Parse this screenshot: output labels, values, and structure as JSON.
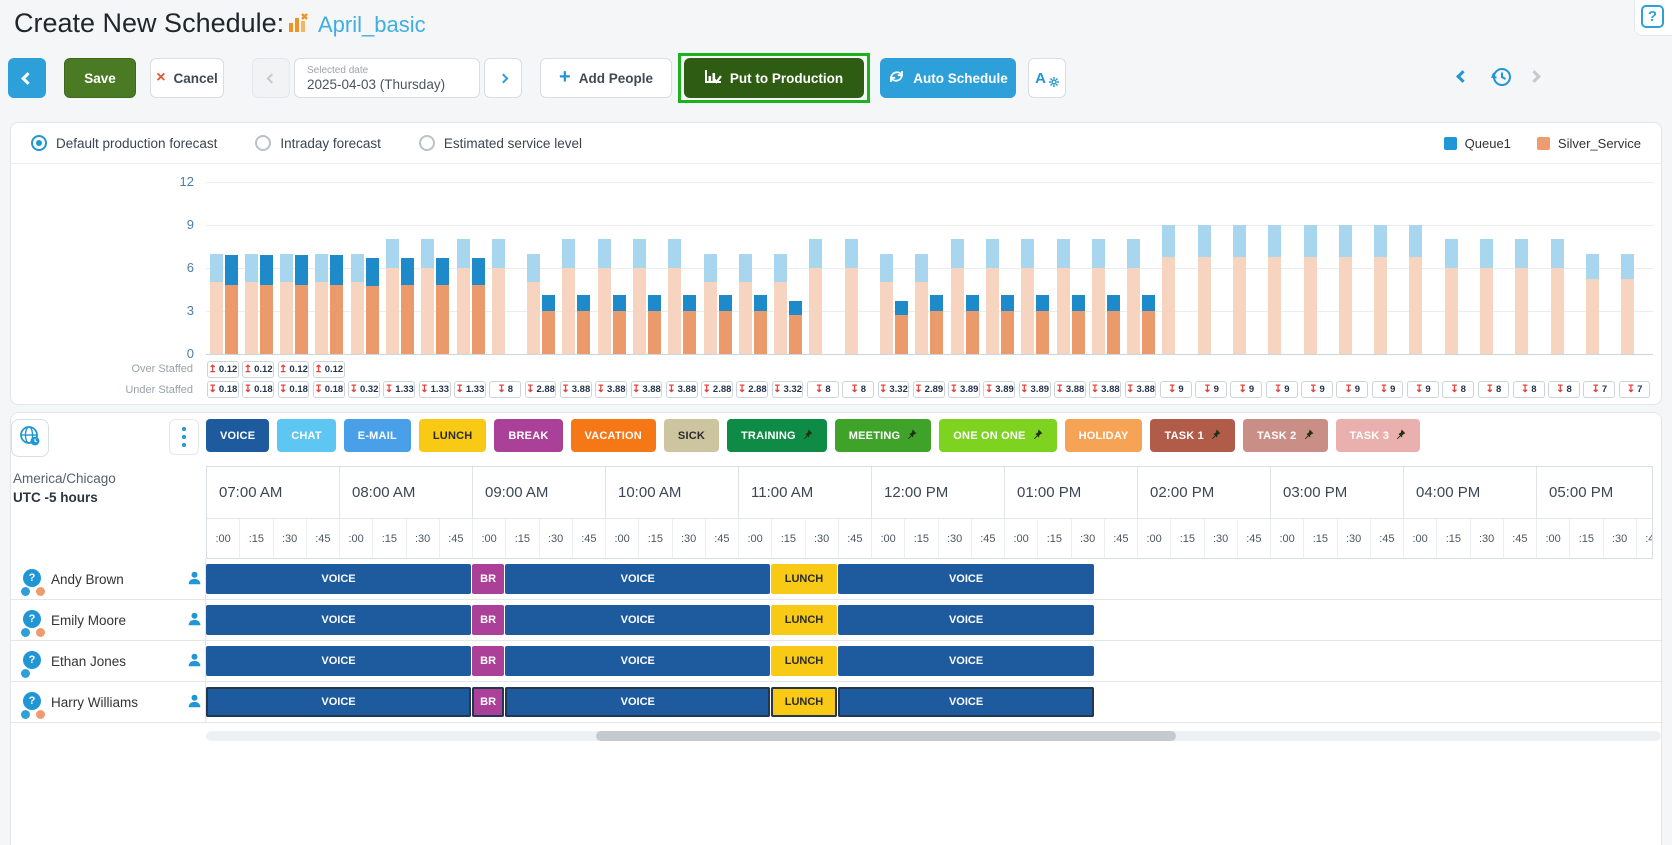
{
  "header": {
    "title": "Create New Schedule:",
    "schedule_name": "April_basic"
  },
  "icons": {
    "help": "?",
    "cancel_x": "×",
    "plus": "+",
    "question": "?",
    "auto_settings_letter": "A"
  },
  "toolbar": {
    "save": "Save",
    "cancel": "Cancel",
    "date_label": "Selected date",
    "date_value": "2025-04-03 (Thursday)",
    "add_people": "Add People",
    "put_to_production": "Put to Production",
    "auto_schedule": "Auto Schedule"
  },
  "chart": {
    "radios": [
      {
        "label": "Default production forecast",
        "selected": true
      },
      {
        "label": "Intraday forecast",
        "selected": false
      },
      {
        "label": "Estimated service level",
        "selected": false
      }
    ],
    "legend": [
      {
        "label": "Queue1",
        "color": "#2196d4"
      },
      {
        "label": "Silver_Service",
        "color": "#ef9b70"
      }
    ],
    "over_label": "Over Staffed",
    "under_label": "Under Staffed",
    "over_arrow": "↥",
    "under_arrow": "↧"
  },
  "chart_data": {
    "type": "bar",
    "stacked": true,
    "grid": true,
    "ylim": [
      0,
      12
    ],
    "yticks": [
      12,
      9,
      6,
      3,
      0
    ],
    "legend_position": "top-right",
    "series": [
      {
        "name": "Silver_Service forecast",
        "color": "#f7d4c0"
      },
      {
        "name": "Queue1 forecast",
        "color": "#a9d6ef"
      },
      {
        "name": "Silver_Service scheduled",
        "color": "#eb9a6c"
      },
      {
        "name": "Queue1 scheduled",
        "color": "#1f8ac9"
      }
    ],
    "intervals": [
      {
        "t": "07:00",
        "f": [
          5,
          2
        ],
        "s": [
          4.82,
          2.12
        ],
        "over": "0.12",
        "under": "0.18"
      },
      {
        "t": "07:15",
        "f": [
          5,
          2
        ],
        "s": [
          4.82,
          2.12
        ],
        "over": "0.12",
        "under": "0.18"
      },
      {
        "t": "07:30",
        "f": [
          5,
          2
        ],
        "s": [
          4.82,
          2.12
        ],
        "over": "0.12",
        "under": "0.18"
      },
      {
        "t": "07:45",
        "f": [
          5,
          2
        ],
        "s": [
          4.82,
          2.12
        ],
        "over": "0.12",
        "under": "0.18"
      },
      {
        "t": "08:00",
        "f": [
          5,
          2
        ],
        "s": [
          4.78,
          1.9
        ],
        "over": null,
        "under": "0.32"
      },
      {
        "t": "08:15",
        "f": [
          6,
          2
        ],
        "s": [
          4.8,
          1.87
        ],
        "over": null,
        "under": "1.33"
      },
      {
        "t": "08:30",
        "f": [
          6,
          2
        ],
        "s": [
          4.8,
          1.87
        ],
        "over": null,
        "under": "1.33"
      },
      {
        "t": "08:45",
        "f": [
          6,
          2
        ],
        "s": [
          4.8,
          1.87
        ],
        "over": null,
        "under": "1.33"
      },
      {
        "t": "09:00",
        "f": [
          6,
          2
        ],
        "s": [
          0,
          0
        ],
        "over": null,
        "under": "8"
      },
      {
        "t": "09:15",
        "f": [
          5,
          2
        ],
        "s": [
          3,
          1.12
        ],
        "over": null,
        "under": "2.88"
      },
      {
        "t": "09:30",
        "f": [
          6,
          2
        ],
        "s": [
          3,
          1.12
        ],
        "over": null,
        "under": "3.88"
      },
      {
        "t": "09:45",
        "f": [
          6,
          2
        ],
        "s": [
          3,
          1.12
        ],
        "over": null,
        "under": "3.88"
      },
      {
        "t": "10:00",
        "f": [
          6,
          2
        ],
        "s": [
          3,
          1.12
        ],
        "over": null,
        "under": "3.88"
      },
      {
        "t": "10:15",
        "f": [
          6,
          2
        ],
        "s": [
          3,
          1.12
        ],
        "over": null,
        "under": "3.88"
      },
      {
        "t": "10:30",
        "f": [
          5,
          2
        ],
        "s": [
          3,
          1.12
        ],
        "over": null,
        "under": "2.88"
      },
      {
        "t": "10:45",
        "f": [
          5,
          2
        ],
        "s": [
          3,
          1.12
        ],
        "over": null,
        "under": "2.88"
      },
      {
        "t": "11:00",
        "f": [
          5,
          2
        ],
        "s": [
          2.7,
          0.98
        ],
        "over": null,
        "under": "3.32"
      },
      {
        "t": "11:15",
        "f": [
          6,
          2
        ],
        "s": [
          0,
          0
        ],
        "over": null,
        "under": "8"
      },
      {
        "t": "11:30",
        "f": [
          6,
          2
        ],
        "s": [
          0,
          0
        ],
        "over": null,
        "under": "8"
      },
      {
        "t": "11:45",
        "f": [
          5,
          2
        ],
        "s": [
          2.7,
          0.98
        ],
        "over": null,
        "under": "3.32"
      },
      {
        "t": "12:00",
        "f": [
          5,
          2
        ],
        "s": [
          3,
          1.11
        ],
        "over": null,
        "under": "2.89"
      },
      {
        "t": "12:15",
        "f": [
          6,
          2
        ],
        "s": [
          3,
          1.11
        ],
        "over": null,
        "under": "3.89"
      },
      {
        "t": "12:30",
        "f": [
          6,
          2
        ],
        "s": [
          3,
          1.11
        ],
        "over": null,
        "under": "3.89"
      },
      {
        "t": "12:45",
        "f": [
          6,
          2
        ],
        "s": [
          3,
          1.11
        ],
        "over": null,
        "under": "3.89"
      },
      {
        "t": "13:00",
        "f": [
          6,
          2
        ],
        "s": [
          3,
          1.12
        ],
        "over": null,
        "under": "3.88"
      },
      {
        "t": "13:15",
        "f": [
          6,
          2
        ],
        "s": [
          3,
          1.12
        ],
        "over": null,
        "under": "3.88"
      },
      {
        "t": "13:30",
        "f": [
          6,
          2
        ],
        "s": [
          3,
          1.12
        ],
        "over": null,
        "under": "3.88"
      },
      {
        "t": "13:45",
        "f": [
          6.75,
          2.25
        ],
        "s": [
          0,
          0
        ],
        "over": null,
        "under": "9"
      },
      {
        "t": "14:00",
        "f": [
          6.75,
          2.25
        ],
        "s": [
          0,
          0
        ],
        "over": null,
        "under": "9"
      },
      {
        "t": "14:15",
        "f": [
          6.75,
          2.25
        ],
        "s": [
          0,
          0
        ],
        "over": null,
        "under": "9"
      },
      {
        "t": "14:30",
        "f": [
          6.75,
          2.25
        ],
        "s": [
          0,
          0
        ],
        "over": null,
        "under": "9"
      },
      {
        "t": "14:45",
        "f": [
          6.75,
          2.25
        ],
        "s": [
          0,
          0
        ],
        "over": null,
        "under": "9"
      },
      {
        "t": "15:00",
        "f": [
          6.75,
          2.25
        ],
        "s": [
          0,
          0
        ],
        "over": null,
        "under": "9"
      },
      {
        "t": "15:15",
        "f": [
          6.75,
          2.25
        ],
        "s": [
          0,
          0
        ],
        "over": null,
        "under": "9"
      },
      {
        "t": "15:30",
        "f": [
          6.75,
          2.25
        ],
        "s": [
          0,
          0
        ],
        "over": null,
        "under": "9"
      },
      {
        "t": "15:45",
        "f": [
          6,
          2
        ],
        "s": [
          0,
          0
        ],
        "over": null,
        "under": "8"
      },
      {
        "t": "16:00",
        "f": [
          6,
          2
        ],
        "s": [
          0,
          0
        ],
        "over": null,
        "under": "8"
      },
      {
        "t": "16:15",
        "f": [
          6,
          2
        ],
        "s": [
          0,
          0
        ],
        "over": null,
        "under": "8"
      },
      {
        "t": "16:30",
        "f": [
          6,
          2
        ],
        "s": [
          0,
          0
        ],
        "over": null,
        "under": "8"
      },
      {
        "t": "16:45",
        "f": [
          5.25,
          1.75
        ],
        "s": [
          0,
          0
        ],
        "over": null,
        "under": "7"
      },
      {
        "t": "17:00",
        "f": [
          5.25,
          1.75
        ],
        "s": [
          0,
          0
        ],
        "over": null,
        "under": "7"
      }
    ]
  },
  "schedule": {
    "timezone_city": "America/Chicago",
    "timezone_utc": "UTC -5 hours",
    "activities": [
      {
        "label": "VOICE",
        "bg": "#1d5b9e",
        "fg": "#ffffff",
        "pinned": false
      },
      {
        "label": "CHAT",
        "bg": "#5ec6f2",
        "fg": "#ffffff",
        "pinned": false
      },
      {
        "label": "E-MAIL",
        "bg": "#4aa0e8",
        "fg": "#ffffff",
        "pinned": false
      },
      {
        "label": "LUNCH",
        "bg": "#f8ca16",
        "fg": "#2b2b2b",
        "pinned": false
      },
      {
        "label": "BREAK",
        "bg": "#ab4098",
        "fg": "#ffffff",
        "pinned": false
      },
      {
        "label": "VACATION",
        "bg": "#f67716",
        "fg": "#ffffff",
        "pinned": false
      },
      {
        "label": "SICK",
        "bg": "#cdc4a0",
        "fg": "#2b2b2b",
        "pinned": false
      },
      {
        "label": "TRAINING",
        "bg": "#0e8b45",
        "fg": "#ffffff",
        "pinned": true
      },
      {
        "label": "MEETING",
        "bg": "#3fa32a",
        "fg": "#ffffff",
        "pinned": true
      },
      {
        "label": "ONE ON ONE",
        "bg": "#7ed321",
        "fg": "#ffffff",
        "pinned": true
      },
      {
        "label": "HOLIDAY",
        "bg": "#f7a355",
        "fg": "#ffffff",
        "pinned": false
      },
      {
        "label": "TASK 1",
        "bg": "#b05c49",
        "fg": "#ffffff",
        "pinned": true
      },
      {
        "label": "TASK 2",
        "bg": "#c98e85",
        "fg": "#ffffff",
        "pinned": true
      },
      {
        "label": "TASK 3",
        "bg": "#eab0ad",
        "fg": "#ffffff",
        "pinned": true
      }
    ],
    "hours": [
      "07:00 AM",
      "08:00 AM",
      "09:00 AM",
      "10:00 AM",
      "11:00 AM",
      "12:00 PM",
      "01:00 PM",
      "02:00 PM",
      "03:00 PM",
      "04:00 PM",
      "05:00 PM"
    ],
    "quarters": [
      ":00",
      ":15",
      ":30",
      ":45"
    ],
    "activity_colors": {
      "voice": "#1d5b9e",
      "break": "#ab4098",
      "lunch": "#f8ca16"
    },
    "segments": [
      {
        "label": "VOICE",
        "type": "voice",
        "start_q": 0,
        "end_q": 8
      },
      {
        "label": "BR",
        "type": "break",
        "start_q": 8,
        "end_q": 9
      },
      {
        "label": "VOICE",
        "type": "voice",
        "start_q": 9,
        "end_q": 17
      },
      {
        "label": "LUNCH",
        "type": "lunch",
        "start_q": 17,
        "end_q": 19
      },
      {
        "label": "VOICE",
        "type": "voice",
        "start_q": 19,
        "end_q": 26.75
      }
    ],
    "employees": [
      {
        "name": "Andy Brown",
        "dots": [
          "#2d9fd9",
          "#ef9b70"
        ],
        "selected": false
      },
      {
        "name": "Emily Moore",
        "dots": [
          "#2d9fd9",
          "#ef9b70"
        ],
        "selected": false
      },
      {
        "name": "Ethan Jones",
        "dots": [
          "#2d9fd9"
        ],
        "selected": false
      },
      {
        "name": "Harry Williams",
        "dots": [
          "#2d9fd9",
          "#ef9b70"
        ],
        "selected": true
      }
    ]
  }
}
